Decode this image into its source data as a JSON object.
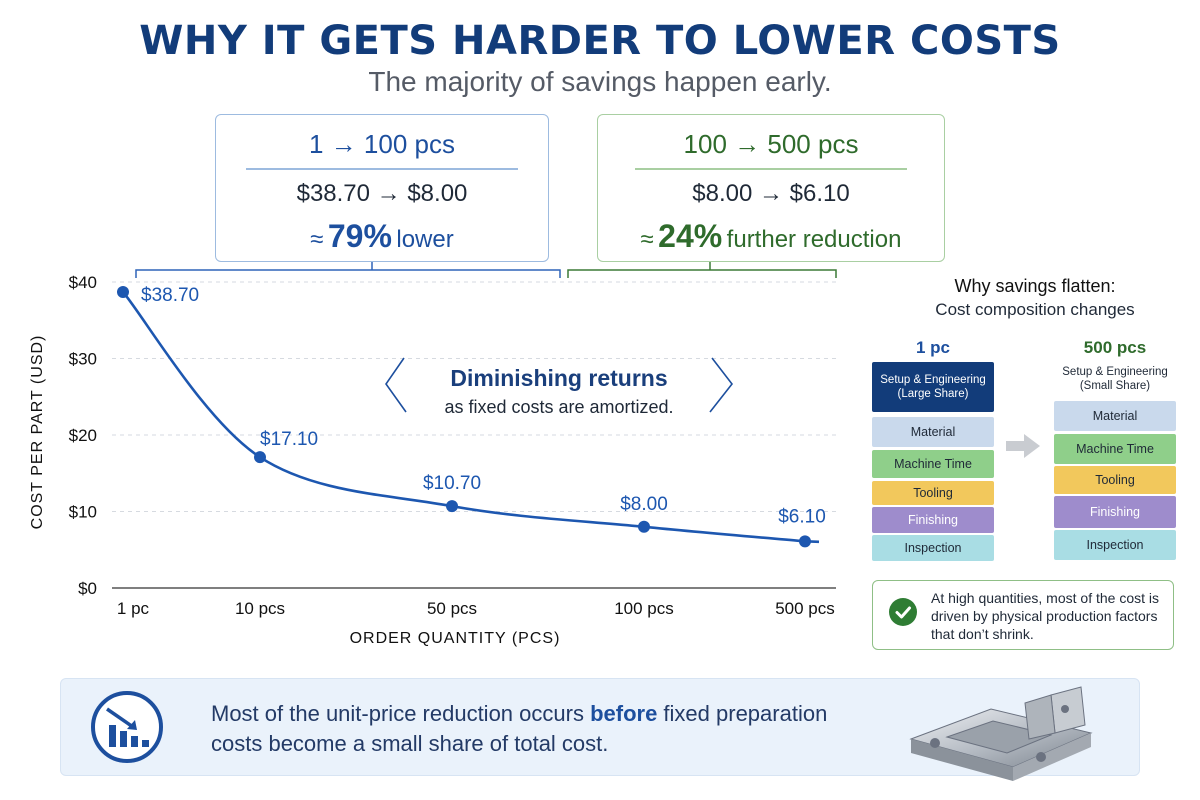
{
  "title": "WHY IT GETS HARDER TO LOWER COSTS",
  "subtitle": "The majority of savings happen early.",
  "callouts": [
    {
      "range": "1 → 100 pcs",
      "prices": "$38.70 → $8.00",
      "approx": "≈",
      "pct": "79%",
      "word": "lower"
    },
    {
      "range": "100 → 500 pcs",
      "prices": "$8.00 → $6.10",
      "approx": "≈",
      "pct": "24%",
      "word": "further reduction"
    }
  ],
  "chart_data": {
    "type": "line",
    "x": [
      "1 pc",
      "10 pcs",
      "50 pcs",
      "100 pcs",
      "500 pcs"
    ],
    "y": [
      38.7,
      17.1,
      10.7,
      8.0,
      6.1
    ],
    "point_labels": [
      "$38.70",
      "$17.10",
      "$10.70",
      "$8.00",
      "$6.10"
    ],
    "y_ticks": [
      "$0",
      "$10",
      "$20",
      "$30",
      "$40"
    ],
    "ylim": [
      0,
      40
    ],
    "xlabel": "ORDER QUANTITY (PCS)",
    "ylabel": "COST PER PART (USD)",
    "grid": true,
    "annotation": {
      "title": "Diminishing returns",
      "text": "as fixed costs are amortized."
    },
    "colors": {
      "line": "#1d57b0",
      "point": "#1d57b0"
    }
  },
  "composition": {
    "title": "Why savings flatten:",
    "subtitle": "Cost composition changes",
    "columns": [
      {
        "label": "1 pc",
        "blocks": [
          {
            "label": "Setup & Engineering (Large Share)",
            "color": "#123c7a",
            "text_color": "#ffffff"
          },
          {
            "label": "Material",
            "color": "#c9d9ec",
            "text_color": "#1f2937"
          },
          {
            "label": "Machine Time",
            "color": "#8fcf8a",
            "text_color": "#1f2937"
          },
          {
            "label": "Tooling",
            "color": "#f2c85c",
            "text_color": "#1f2937"
          },
          {
            "label": "Finishing",
            "color": "#9e8ccc",
            "text_color": "#ffffff"
          },
          {
            "label": "Inspection",
            "color": "#a9dde4",
            "text_color": "#1f2937"
          }
        ]
      },
      {
        "label": "500 pcs",
        "blocks": [
          {
            "label": "Setup & Engineering (Small Share)",
            "color": "#ffffff",
            "text_color": "#1f2937"
          },
          {
            "label": "Material",
            "color": "#c9d9ec",
            "text_color": "#1f2937"
          },
          {
            "label": "Machine Time",
            "color": "#8fcf8a",
            "text_color": "#1f2937"
          },
          {
            "label": "Tooling",
            "color": "#f2c85c",
            "text_color": "#1f2937"
          },
          {
            "label": "Finishing",
            "color": "#9e8ccc",
            "text_color": "#ffffff"
          },
          {
            "label": "Inspection",
            "color": "#a9dde4",
            "text_color": "#1f2937"
          }
        ]
      }
    ],
    "note": "At high quantities, most of the cost is driven by physical production factors that don’t shrink."
  },
  "bottom": {
    "text_before": "Most of the unit-price reduction occurs ",
    "text_bold": "before",
    "text_after": " fixed preparation costs become a small share of total cost."
  },
  "icons": {
    "badge": "chart-down-icon",
    "check": "check-circle-icon",
    "part": "machined-part-image",
    "arrow": "arrow-right-icon"
  }
}
